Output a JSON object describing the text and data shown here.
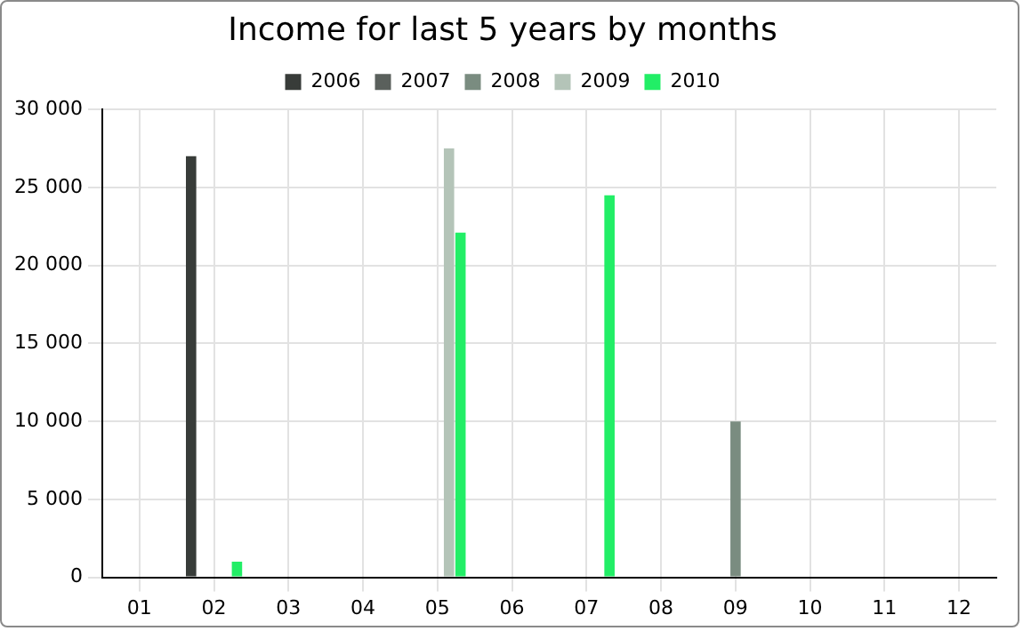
{
  "chart_data": {
    "type": "bar",
    "title": "Income for last 5 years by months",
    "categories": [
      "01",
      "02",
      "03",
      "04",
      "05",
      "06",
      "07",
      "08",
      "09",
      "10",
      "11",
      "12"
    ],
    "series": [
      {
        "name": "2006",
        "color": "#383c39",
        "values": [
          null,
          27000,
          null,
          null,
          null,
          null,
          null,
          null,
          null,
          null,
          null,
          null
        ]
      },
      {
        "name": "2007",
        "color": "#5a605c",
        "values": [
          null,
          null,
          null,
          null,
          null,
          null,
          null,
          null,
          null,
          null,
          null,
          null
        ]
      },
      {
        "name": "2008",
        "color": "#7a8c80",
        "values": [
          null,
          null,
          null,
          null,
          null,
          null,
          null,
          null,
          10000,
          null,
          null,
          null
        ]
      },
      {
        "name": "2009",
        "color": "#b4c4b8",
        "values": [
          null,
          null,
          null,
          null,
          27500,
          null,
          null,
          null,
          null,
          null,
          null,
          null
        ]
      },
      {
        "name": "2010",
        "color": "#22ee66",
        "values": [
          null,
          1000,
          null,
          null,
          22100,
          null,
          24500,
          null,
          null,
          null,
          null,
          null
        ]
      }
    ],
    "ylim": [
      0,
      30000
    ],
    "yticks": [
      {
        "value": 0,
        "label": "0"
      },
      {
        "value": 5000,
        "label": "5 000"
      },
      {
        "value": 10000,
        "label": "10 000"
      },
      {
        "value": 15000,
        "label": "15 000"
      },
      {
        "value": 20000,
        "label": "20 000"
      },
      {
        "value": 25000,
        "label": "25 000"
      },
      {
        "value": 30000,
        "label": "30 000"
      }
    ],
    "grid": true,
    "legend": "top"
  }
}
